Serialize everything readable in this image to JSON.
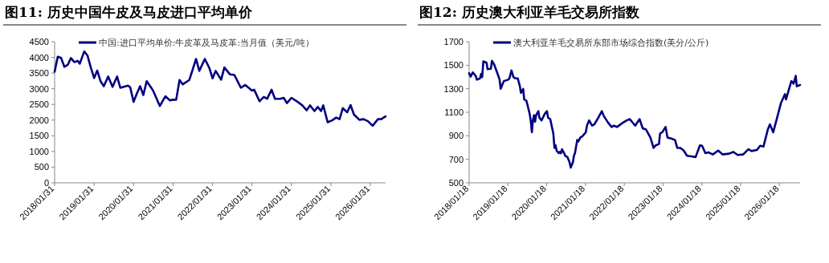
{
  "chart_data": [
    {
      "type": "line",
      "title": "图11:  历史中国牛皮及马皮进口平均单价",
      "legend": "top",
      "xlim": [
        "2018-01-31",
        "2026-06-21"
      ],
      "xticks": [
        {
          "value": "2018-01-31",
          "label": "2018/01/31"
        },
        {
          "value": "2019-01-31",
          "label": "2019/01/31"
        },
        {
          "value": "2020-01-31",
          "label": "2020/01/31"
        },
        {
          "value": "2021-01-31",
          "label": "2021/01/31"
        },
        {
          "value": "2022-01-31",
          "label": "2022/01/31"
        },
        {
          "value": "2023-01-31",
          "label": "2023/01/31"
        },
        {
          "value": "2024-01-31",
          "label": "2024/01/31"
        },
        {
          "value": "2025-01-31",
          "label": "2025/01/31"
        },
        {
          "value": "2026-01-31",
          "label": "2026/01/31"
        }
      ],
      "ylim": [
        0,
        4500
      ],
      "yticks": [
        0,
        500,
        1000,
        1500,
        2000,
        2500,
        3000,
        3500,
        4000,
        4500
      ],
      "series": [
        {
          "name": "中国:进口平均单价:牛皮革及马皮革:当月值（美元/吨）",
          "color": "#000080",
          "x": [
            "2018-01-31",
            "2018-03-01",
            "2018-04-01",
            "2018-05-01",
            "2018-06-01",
            "2018-07-01",
            "2018-08-01",
            "2018-09-01",
            "2018-09-21",
            "2018-11-01",
            "2018-12-01",
            "2019-01-01",
            "2019-02-01",
            "2019-03-01",
            "2019-04-01",
            "2019-05-01",
            "2019-06-11",
            "2019-07-21",
            "2019-09-01",
            "2019-10-01",
            "2019-12-11",
            "2020-01-01",
            "2020-02-01",
            "2020-03-01",
            "2020-04-01",
            "2020-05-01",
            "2020-06-01",
            "2020-07-11",
            "2020-08-01",
            "2020-10-01",
            "2020-11-21",
            "2021-01-01",
            "2021-02-01",
            "2021-03-01",
            "2021-04-01",
            "2021-05-01",
            "2021-07-01",
            "2021-09-01",
            "2021-10-01",
            "2021-11-21",
            "2022-01-01",
            "2022-02-01",
            "2022-03-01",
            "2022-04-21",
            "2022-05-21",
            "2022-07-11",
            "2022-08-21",
            "2022-10-21",
            "2022-12-01",
            "2023-02-01",
            "2023-02-21",
            "2023-04-11",
            "2023-05-21",
            "2023-06-21",
            "2023-08-01",
            "2023-09-01",
            "2023-10-21",
            "2023-11-21",
            "2023-12-21",
            "2024-02-01",
            "2024-03-21",
            "2024-05-11",
            "2024-06-21",
            "2024-07-21",
            "2024-09-01",
            "2024-10-01",
            "2024-11-01",
            "2024-11-21",
            "2025-01-01",
            "2025-02-11",
            "2025-03-21",
            "2025-04-21",
            "2025-05-21",
            "2025-07-01",
            "2025-08-01",
            "2025-09-01",
            "2025-10-21",
            "2025-12-01",
            "2026-01-11",
            "2026-02-21",
            "2026-04-11",
            "2026-05-11",
            "2026-06-21"
          ],
          "values": [
            3540,
            4020,
            3980,
            3700,
            3760,
            3980,
            3850,
            3890,
            3800,
            4190,
            4060,
            3670,
            3340,
            3580,
            3240,
            3080,
            3390,
            3060,
            3390,
            3030,
            3100,
            3040,
            2580,
            2840,
            3080,
            2800,
            3240,
            3040,
            2930,
            2450,
            2760,
            2630,
            2650,
            2650,
            3280,
            3140,
            3280,
            3950,
            3570,
            3950,
            3670,
            3330,
            3570,
            3290,
            3680,
            3460,
            3440,
            3030,
            3120,
            2940,
            2970,
            2600,
            2740,
            2680,
            2970,
            2680,
            2680,
            2710,
            2540,
            2710,
            2600,
            2470,
            2310,
            2470,
            2290,
            2420,
            2290,
            2470,
            1930,
            1990,
            2080,
            2030,
            2380,
            2250,
            2480,
            2180,
            2010,
            2030,
            1960,
            1820,
            2030,
            2030,
            2120
          ]
        }
      ]
    },
    {
      "type": "line",
      "title": "图12:  历史澳大利亚羊毛交易所指数",
      "legend": "top",
      "xlim": [
        "2018-01-18",
        "2026-08-01"
      ],
      "xticks": [
        {
          "value": "2018-01-18",
          "label": "2018/01/18"
        },
        {
          "value": "2019-01-18",
          "label": "2019/01/18"
        },
        {
          "value": "2020-01-18",
          "label": "2020/01/18"
        },
        {
          "value": "2021-01-18",
          "label": "2021/01/18"
        },
        {
          "value": "2022-01-18",
          "label": "2022/01/18"
        },
        {
          "value": "2023-01-18",
          "label": "2023/01/18"
        },
        {
          "value": "2024-01-18",
          "label": "2024/01/18"
        },
        {
          "value": "2025-01-18",
          "label": "2025/01/18"
        },
        {
          "value": "2026-01-18",
          "label": "2026/01/18"
        }
      ],
      "ylim": [
        500,
        1700
      ],
      "yticks": [
        500,
        700,
        900,
        1100,
        1300,
        1500,
        1700
      ],
      "series": [
        {
          "name": "澳大利亚羊毛交易所东部市场综合指数(美分/公斤)",
          "color": "#000080",
          "x": [
            "2018-01-18",
            "2018-02-01",
            "2018-02-21",
            "2018-03-21",
            "2018-04-01",
            "2018-05-01",
            "2018-05-11",
            "2018-05-21",
            "2018-06-01",
            "2018-07-01",
            "2018-07-11",
            "2018-08-11",
            "2018-08-21",
            "2018-09-11",
            "2018-10-11",
            "2018-11-01",
            "2018-11-11",
            "2018-12-01",
            "2018-12-11",
            "2019-01-21",
            "2019-02-01",
            "2019-02-21",
            "2019-03-11",
            "2019-04-01",
            "2019-04-21",
            "2019-05-11",
            "2019-05-21",
            "2019-06-11",
            "2019-06-21",
            "2019-07-11",
            "2019-07-21",
            "2019-08-11",
            "2019-08-21",
            "2019-09-01",
            "2019-09-11",
            "2019-09-21",
            "2019-10-01",
            "2019-10-11",
            "2019-11-01",
            "2019-11-11",
            "2019-12-01",
            "2020-01-01",
            "2020-01-21",
            "2020-02-01",
            "2020-02-21",
            "2020-03-21",
            "2020-04-01",
            "2020-04-11",
            "2020-04-21",
            "2020-05-11",
            "2020-05-21",
            "2020-06-01",
            "2020-06-11",
            "2020-07-01",
            "2020-07-11",
            "2020-08-01",
            "2020-08-21",
            "2020-09-01",
            "2020-09-21",
            "2020-10-01",
            "2020-10-11",
            "2020-11-01",
            "2020-11-11",
            "2020-12-01",
            "2020-12-21",
            "2021-01-21",
            "2021-02-01",
            "2021-02-21",
            "2021-03-21",
            "2021-04-11",
            "2021-05-11",
            "2021-06-21",
            "2021-07-11",
            "2021-08-21",
            "2021-09-21",
            "2021-10-11",
            "2021-11-11",
            "2022-01-01",
            "2022-02-11",
            "2022-03-11",
            "2022-05-01",
            "2022-06-11",
            "2022-07-11",
            "2022-08-11",
            "2022-09-21",
            "2022-10-21",
            "2022-11-11",
            "2022-12-11",
            "2022-12-21",
            "2023-01-11",
            "2023-02-11",
            "2023-03-01",
            "2023-04-11",
            "2023-05-11",
            "2023-06-01",
            "2023-07-01",
            "2023-08-01",
            "2023-09-01",
            "2023-10-11",
            "2023-11-21",
            "2024-01-01",
            "2024-01-21",
            "2024-02-21",
            "2024-03-21",
            "2024-05-01",
            "2024-06-21",
            "2024-08-01",
            "2024-10-01",
            "2024-11-11",
            "2024-12-21",
            "2025-02-11",
            "2025-04-01",
            "2025-05-01",
            "2025-06-21",
            "2025-07-21",
            "2025-08-21",
            "2025-10-01",
            "2025-10-21",
            "2025-11-21",
            "2025-12-21",
            "2026-02-01",
            "2026-03-11",
            "2026-03-21",
            "2026-05-11",
            "2026-06-01",
            "2026-06-21",
            "2026-07-01",
            "2026-08-01"
          ],
          "values": [
            1432,
            1403,
            1439,
            1410,
            1377,
            1388,
            1426,
            1399,
            1533,
            1521,
            1466,
            1470,
            1537,
            1506,
            1432,
            1377,
            1299,
            1343,
            1365,
            1377,
            1388,
            1455,
            1399,
            1388,
            1388,
            1321,
            1265,
            1299,
            1209,
            1198,
            1165,
            1087,
            1031,
            930,
            1031,
            1075,
            1020,
            1075,
            1109,
            1053,
            1031,
            1087,
            1109,
            1053,
            1042,
            919,
            797,
            819,
            774,
            752,
            763,
            752,
            785,
            752,
            730,
            719,
            674,
            629,
            674,
            730,
            752,
            864,
            852,
            886,
            897,
            930,
            986,
            1031,
            986,
            997,
            1042,
            1109,
            1065,
            1009,
            975,
            986,
            975,
            1009,
            1031,
            1042,
            986,
            1042,
            964,
            953,
            886,
            797,
            819,
            830,
            919,
            930,
            975,
            886,
            875,
            864,
            797,
            797,
            774,
            730,
            725,
            719,
            819,
            815,
            752,
            759,
            741,
            774,
            741,
            748,
            763,
            737,
            741,
            785,
            770,
            779,
            815,
            808,
            953,
            997,
            930,
            1031,
            1176,
            1254,
            1209,
            1365,
            1343,
            1410,
            1321,
            1332
          ]
        }
      ]
    }
  ]
}
